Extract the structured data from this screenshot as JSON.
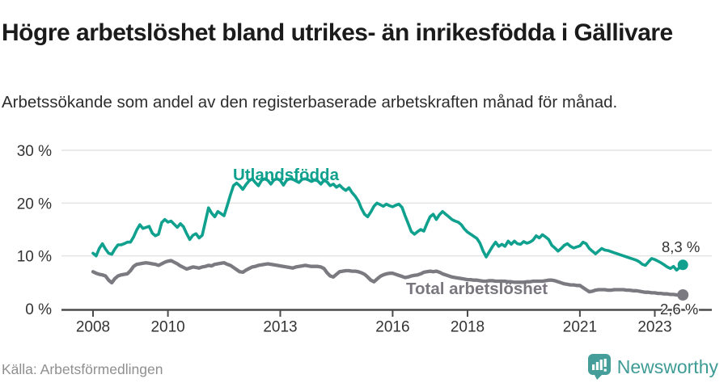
{
  "chart_data": {
    "type": "line",
    "title": "Högre arbetslöshet bland utrikes- än inrikesfödda i Gällivare",
    "subtitle": "Arbetssökande som andel av den registerbaserade arbetskraften månad för månad.",
    "source": "Källa: Arbetsförmedlingen",
    "x_unit": "monthly",
    "x_start_year": 2008,
    "xlim": [
      2007.2,
      2024.5
    ],
    "ylim": [
      0,
      30
    ],
    "grid": "horizontal",
    "legend_position": "inline-labels",
    "y_ticks": [
      {
        "value": 0,
        "label": "0 %"
      },
      {
        "value": 10,
        "label": "10 %"
      },
      {
        "value": 20,
        "label": "20 %"
      },
      {
        "value": 30,
        "label": "30 %"
      }
    ],
    "x_ticks": [
      {
        "year": 2008,
        "label": "2008"
      },
      {
        "year": 2010,
        "label": "2010"
      },
      {
        "year": 2013,
        "label": "2013"
      },
      {
        "year": 2016,
        "label": "2016"
      },
      {
        "year": 2018,
        "label": "2018"
      },
      {
        "year": 2021,
        "label": "2021"
      },
      {
        "year": 2023,
        "label": "2023"
      }
    ],
    "series": [
      {
        "name": "Utlandsfödda",
        "color": "#10a08e",
        "line_width": 3.6,
        "end_dot_radius": 6.5,
        "end_label": "8,3 %",
        "end_value": 8.3,
        "values": [
          10.5,
          10.0,
          11.4,
          12.3,
          11.3,
          10.5,
          10.3,
          11.3,
          12.1,
          12.1,
          12.3,
          12.6,
          12.6,
          13.6,
          14.9,
          15.9,
          15.2,
          15.4,
          15.6,
          14.3,
          13.8,
          14.1,
          16.3,
          16.9,
          16.4,
          16.6,
          16.0,
          15.4,
          16.1,
          15.5,
          14.2,
          13.1,
          13.9,
          14.2,
          13.4,
          13.9,
          16.5,
          19.1,
          18.1,
          17.4,
          18.4,
          18.0,
          17.6,
          19.5,
          21.5,
          23.3,
          23.8,
          23.3,
          22.6,
          23.5,
          24.2,
          24.6,
          23.9,
          23.3,
          24.3,
          24.6,
          24.3,
          23.6,
          24.4,
          24.6,
          24.3,
          23.4,
          24.3,
          24.6,
          24.5,
          24.2,
          23.9,
          24.5,
          24.6,
          24.4,
          24.1,
          24.4,
          24.2,
          23.6,
          24.3,
          24.0,
          23.3,
          23.6,
          23.0,
          23.4,
          22.8,
          22.4,
          22.9,
          22.0,
          21.3,
          20.4,
          19.0,
          17.9,
          17.4,
          18.3,
          19.4,
          20.0,
          19.7,
          19.4,
          19.8,
          19.5,
          19.3,
          19.6,
          19.8,
          19.2,
          17.6,
          16.1,
          14.6,
          14.1,
          14.6,
          15.0,
          14.7,
          16.1,
          17.4,
          17.9,
          16.9,
          17.8,
          18.4,
          17.9,
          17.4,
          16.9,
          16.6,
          16.4,
          15.9,
          15.1,
          14.5,
          14.1,
          13.7,
          13.3,
          12.4,
          10.9,
          9.8,
          10.8,
          11.8,
          12.6,
          11.8,
          12.2,
          11.8,
          12.8,
          12.2,
          12.8,
          12.3,
          12.2,
          12.7,
          12.4,
          12.6,
          13.0,
          13.8,
          13.4,
          14.0,
          13.6,
          13.1,
          12.0,
          11.5,
          10.9,
          11.4,
          12.0,
          12.3,
          11.8,
          11.5,
          11.7,
          11.9,
          12.6,
          12.3,
          11.4,
          10.9,
          10.4,
          10.9,
          11.4,
          11.1,
          11.0,
          10.8,
          10.6,
          10.4,
          10.2,
          10.0,
          9.8,
          9.6,
          9.4,
          9.2,
          8.9,
          8.4,
          8.2,
          8.9,
          9.5,
          9.3,
          9.0,
          8.7,
          8.3,
          7.9,
          7.6,
          8.0,
          7.3,
          7.8,
          8.3
        ]
      },
      {
        "name": "Total arbetslöshet",
        "color": "#7c7a81",
        "line_width": 4.3,
        "end_dot_radius": 7,
        "end_label": "2,6 %",
        "end_value": 2.6,
        "values": [
          7.0,
          6.7,
          6.5,
          6.4,
          6.2,
          5.4,
          4.9,
          5.7,
          6.2,
          6.4,
          6.5,
          6.6,
          7.2,
          8.0,
          8.4,
          8.5,
          8.6,
          8.7,
          8.6,
          8.5,
          8.4,
          8.2,
          8.5,
          8.8,
          9.0,
          9.1,
          8.8,
          8.5,
          8.1,
          7.8,
          7.5,
          7.7,
          7.9,
          7.8,
          7.7,
          7.9,
          8.0,
          8.2,
          8.1,
          8.4,
          8.5,
          8.6,
          8.7,
          8.4,
          8.2,
          7.8,
          7.4,
          7.0,
          6.9,
          7.3,
          7.6,
          7.9,
          8.0,
          8.2,
          8.3,
          8.4,
          8.5,
          8.4,
          8.3,
          8.2,
          8.1,
          8.0,
          7.9,
          7.8,
          7.7,
          7.9,
          8.0,
          8.1,
          8.2,
          8.1,
          8.0,
          8.0,
          8.0,
          7.9,
          7.6,
          6.8,
          6.2,
          6.0,
          6.5,
          7.0,
          7.1,
          7.2,
          7.2,
          7.1,
          7.1,
          7.0,
          6.8,
          6.5,
          6.0,
          5.4,
          5.1,
          5.6,
          6.1,
          6.4,
          6.6,
          6.7,
          6.7,
          6.5,
          6.3,
          6.1,
          5.9,
          6.0,
          6.2,
          6.3,
          6.4,
          6.6,
          6.9,
          7.0,
          7.1,
          7.0,
          7.1,
          6.9,
          6.6,
          6.4,
          6.2,
          6.0,
          5.9,
          5.8,
          5.7,
          5.6,
          5.5,
          5.5,
          5.4,
          5.4,
          5.3,
          5.2,
          5.2,
          5.3,
          5.3,
          5.2,
          5.2,
          5.2,
          5.2,
          5.1,
          5.1,
          5.0,
          5.0,
          5.0,
          5.0,
          5.1,
          5.1,
          5.2,
          5.2,
          5.2,
          5.2,
          5.3,
          5.4,
          5.4,
          5.3,
          5.1,
          4.9,
          4.7,
          4.6,
          4.5,
          4.5,
          4.4,
          4.4,
          4.0,
          3.6,
          3.2,
          3.3,
          3.5,
          3.6,
          3.6,
          3.6,
          3.5,
          3.5,
          3.6,
          3.6,
          3.6,
          3.6,
          3.5,
          3.5,
          3.4,
          3.4,
          3.3,
          3.2,
          3.1,
          3.1,
          3.0,
          3.0,
          2.9,
          2.9,
          2.8,
          2.8,
          2.7,
          2.7,
          2.6,
          2.6,
          2.6
        ]
      }
    ]
  },
  "branding": {
    "name": "Newsworthy",
    "icon": "newsworthy-speech-bubble-bar-chart-icon",
    "color": "#459e99"
  },
  "colors": {
    "accent_teal": "#10a08e",
    "neutral_gray": "#7c7a81",
    "grid": "#e4e4e4",
    "axis": "#4b4b4b",
    "tick_text": "#333333",
    "title_text": "#1b1b1b",
    "source_text": "#8f8f8f",
    "brand_teal": "#3f9b95"
  }
}
